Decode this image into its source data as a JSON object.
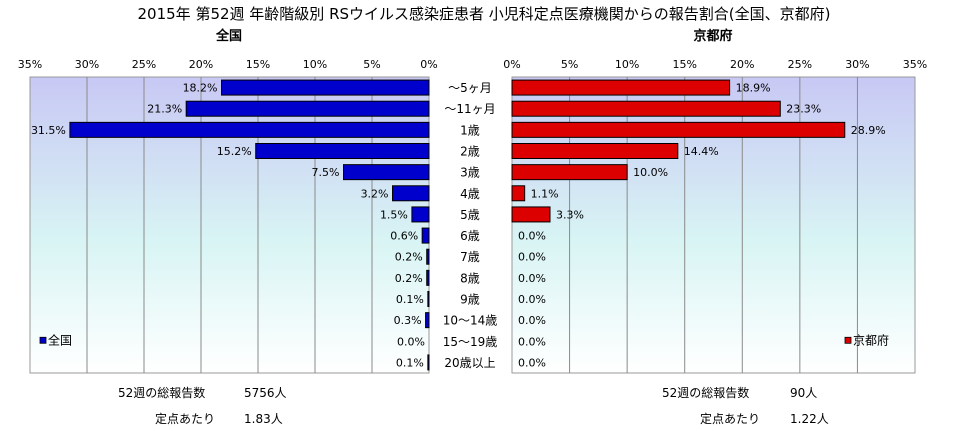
{
  "title": "2015年 第52週 年齢階級別 RSウイルス感染症患者 小児科定点医療機関からの報告割合(全国、京都府)",
  "categories": [
    "～5ヶ月",
    "～11ヶ月",
    "1歳",
    "2歳",
    "3歳",
    "4歳",
    "5歳",
    "6歳",
    "7歳",
    "8歳",
    "9歳",
    "10～14歳",
    "15～19歳",
    "20歳以上"
  ],
  "chart_data": [
    {
      "type": "bar",
      "orientation": "horizontal",
      "direction": "right-to-left",
      "title": "全国",
      "series": [
        {
          "name": "全国",
          "values": [
            18.2,
            21.3,
            31.5,
            15.2,
            7.5,
            3.2,
            1.5,
            0.6,
            0.2,
            0.2,
            0.1,
            0.3,
            0.0,
            0.1
          ],
          "color": "#0000cc"
        }
      ],
      "value_labels": [
        "18.2%",
        "21.3%",
        "31.5%",
        "15.2%",
        "7.5%",
        "3.2%",
        "1.5%",
        "0.6%",
        "0.2%",
        "0.2%",
        "0.1%",
        "0.3%",
        "0.0%",
        "0.1%"
      ],
      "xlim": [
        0,
        35
      ],
      "ticks": [
        "0%",
        "5%",
        "10%",
        "15%",
        "20%",
        "25%",
        "30%",
        "35%"
      ],
      "legend_position": "bottom-left",
      "grid": true
    },
    {
      "type": "bar",
      "orientation": "horizontal",
      "direction": "left-to-right",
      "title": "京都府",
      "series": [
        {
          "name": "京都府",
          "values": [
            18.9,
            23.3,
            28.9,
            14.4,
            10.0,
            1.1,
            3.3,
            0.0,
            0.0,
            0.0,
            0.0,
            0.0,
            0.0,
            0.0
          ],
          "color": "#dd0000"
        }
      ],
      "value_labels": [
        "18.9%",
        "23.3%",
        "28.9%",
        "14.4%",
        "10.0%",
        "1.1%",
        "3.3%",
        "0.0%",
        "0.0%",
        "0.0%",
        "0.0%",
        "0.0%",
        "0.0%",
        "0.0%"
      ],
      "xlim": [
        0,
        35
      ],
      "ticks": [
        "0%",
        "5%",
        "10%",
        "15%",
        "20%",
        "25%",
        "30%",
        "35%"
      ],
      "legend_position": "bottom-right",
      "grid": true
    }
  ],
  "stats": {
    "national": {
      "total_label": "52週の総報告数",
      "total_value": "5756人",
      "per_label": "定点あたり",
      "per_value": "1.83人"
    },
    "kyoto": {
      "total_label": "52週の総報告数",
      "total_value": "90人",
      "per_label": "定点あたり",
      "per_value": "1.22人"
    }
  },
  "colors": {
    "national_bar": "#0000cc",
    "kyoto_bar": "#dd0000",
    "plot_top": "#c8c8f4",
    "plot_bottom": "#ffffff"
  }
}
